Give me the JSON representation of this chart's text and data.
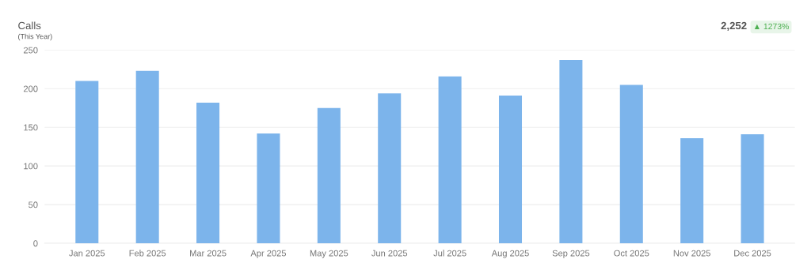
{
  "chart_data": {
    "type": "bar",
    "title": "Calls",
    "subtitle": "(This Year)",
    "categories": [
      "Jan 2025",
      "Feb 2025",
      "Mar 2025",
      "Apr 2025",
      "May 2025",
      "Jun 2025",
      "Jul 2025",
      "Aug 2025",
      "Sep 2025",
      "Oct 2025",
      "Nov 2025",
      "Dec 2025"
    ],
    "values": [
      210,
      223,
      182,
      142,
      175,
      194,
      216,
      191,
      237,
      205,
      136,
      141
    ],
    "color": "#7cb4eb",
    "ylim": [
      0,
      250
    ],
    "yticks": [
      0,
      50,
      100,
      150,
      200,
      250
    ],
    "grid": "y",
    "legend": false,
    "annotations": [
      "2,252",
      "▲ 1273%"
    ]
  }
}
